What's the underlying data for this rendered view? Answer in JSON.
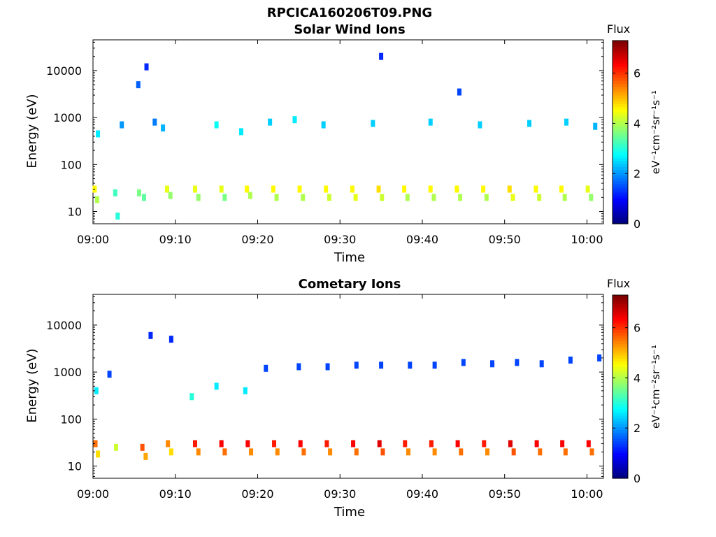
{
  "figure": {
    "title": "RPCICA160206T09.PNG"
  },
  "colorbar": {
    "title": "Flux",
    "unit_label": "eV⁻¹cm⁻²sr⁻¹s⁻¹",
    "ticks": [
      "0",
      "2",
      "4",
      "6"
    ],
    "colormap": "jet",
    "range": [
      0,
      7.3
    ]
  },
  "chart_data": [
    {
      "type": "heatmap",
      "title": "Solar Wind Ions",
      "xlabel": "Time",
      "ylabel": "Energy (eV)",
      "x_ticks": [
        "09:00",
        "09:10",
        "09:20",
        "09:30",
        "09:40",
        "09:50",
        "10:00"
      ],
      "y_ticks": [
        "10",
        "100",
        "1000",
        "10000"
      ],
      "y_scale": "log",
      "ylim": [
        5.5,
        45000
      ],
      "xlim_minutes": [
        0,
        62
      ],
      "cells": [
        {
          "t": 0.2,
          "e": 30,
          "f": 4.6
        },
        {
          "t": 0.5,
          "e": 18,
          "f": 4.0
        },
        {
          "t": 2.7,
          "e": 25,
          "f": 3.2
        },
        {
          "t": 3.0,
          "e": 8,
          "f": 3.0
        },
        {
          "t": 5.6,
          "e": 25,
          "f": 3.6
        },
        {
          "t": 6.2,
          "e": 20,
          "f": 3.4
        },
        {
          "t": 9.0,
          "e": 30,
          "f": 4.4
        },
        {
          "t": 9.4,
          "e": 22,
          "f": 3.8
        },
        {
          "t": 12.4,
          "e": 30,
          "f": 4.4
        },
        {
          "t": 12.8,
          "e": 20,
          "f": 3.8
        },
        {
          "t": 15.6,
          "e": 30,
          "f": 4.4
        },
        {
          "t": 16.0,
          "e": 20,
          "f": 3.6
        },
        {
          "t": 18.7,
          "e": 30,
          "f": 4.6
        },
        {
          "t": 19.1,
          "e": 22,
          "f": 4.0
        },
        {
          "t": 21.9,
          "e": 30,
          "f": 4.6
        },
        {
          "t": 22.3,
          "e": 20,
          "f": 4.0
        },
        {
          "t": 25.1,
          "e": 30,
          "f": 4.6
        },
        {
          "t": 25.5,
          "e": 20,
          "f": 4.0
        },
        {
          "t": 28.3,
          "e": 30,
          "f": 4.6
        },
        {
          "t": 28.7,
          "e": 20,
          "f": 4.2
        },
        {
          "t": 31.5,
          "e": 30,
          "f": 4.6
        },
        {
          "t": 31.9,
          "e": 20,
          "f": 4.4
        },
        {
          "t": 34.7,
          "e": 30,
          "f": 4.8
        },
        {
          "t": 35.1,
          "e": 20,
          "f": 4.2
        },
        {
          "t": 37.8,
          "e": 30,
          "f": 4.6
        },
        {
          "t": 38.2,
          "e": 20,
          "f": 4.0
        },
        {
          "t": 41.0,
          "e": 30,
          "f": 4.6
        },
        {
          "t": 41.4,
          "e": 20,
          "f": 4.0
        },
        {
          "t": 44.2,
          "e": 30,
          "f": 4.6
        },
        {
          "t": 44.6,
          "e": 20,
          "f": 4.0
        },
        {
          "t": 47.4,
          "e": 30,
          "f": 4.6
        },
        {
          "t": 47.8,
          "e": 20,
          "f": 4.0
        },
        {
          "t": 50.6,
          "e": 30,
          "f": 4.8
        },
        {
          "t": 51.0,
          "e": 20,
          "f": 4.4
        },
        {
          "t": 53.8,
          "e": 30,
          "f": 4.6
        },
        {
          "t": 54.2,
          "e": 20,
          "f": 4.2
        },
        {
          "t": 56.9,
          "e": 30,
          "f": 4.6
        },
        {
          "t": 57.3,
          "e": 20,
          "f": 4.0
        },
        {
          "t": 60.1,
          "e": 30,
          "f": 4.4
        },
        {
          "t": 60.5,
          "e": 20,
          "f": 3.8
        },
        {
          "t": 0.6,
          "e": 450,
          "f": 2.6
        },
        {
          "t": 3.5,
          "e": 700,
          "f": 2.0
        },
        {
          "t": 5.5,
          "e": 5000,
          "f": 1.6
        },
        {
          "t": 6.5,
          "e": 12000,
          "f": 1.2
        },
        {
          "t": 7.5,
          "e": 800,
          "f": 1.8
        },
        {
          "t": 8.5,
          "e": 600,
          "f": 2.2
        },
        {
          "t": 15.0,
          "e": 700,
          "f": 2.8
        },
        {
          "t": 18.0,
          "e": 500,
          "f": 2.6
        },
        {
          "t": 21.5,
          "e": 800,
          "f": 2.4
        },
        {
          "t": 24.5,
          "e": 900,
          "f": 2.6
        },
        {
          "t": 28.0,
          "e": 700,
          "f": 2.4
        },
        {
          "t": 34.0,
          "e": 750,
          "f": 2.4
        },
        {
          "t": 35.0,
          "e": 20000,
          "f": 1.2
        },
        {
          "t": 41.0,
          "e": 800,
          "f": 2.4
        },
        {
          "t": 44.5,
          "e": 3500,
          "f": 1.4
        },
        {
          "t": 47.0,
          "e": 700,
          "f": 2.4
        },
        {
          "t": 53.0,
          "e": 750,
          "f": 2.4
        },
        {
          "t": 57.5,
          "e": 800,
          "f": 2.4
        },
        {
          "t": 61.0,
          "e": 650,
          "f": 2.2
        }
      ]
    },
    {
      "type": "heatmap",
      "title": "Cometary Ions",
      "xlabel": "Time",
      "ylabel": "Energy (eV)",
      "x_ticks": [
        "09:00",
        "09:10",
        "09:20",
        "09:30",
        "09:40",
        "09:50",
        "10:00"
      ],
      "y_ticks": [
        "10",
        "100",
        "1000",
        "10000"
      ],
      "y_scale": "log",
      "ylim": [
        5.5,
        45000
      ],
      "xlim_minutes": [
        0,
        62
      ],
      "cells": [
        {
          "t": 0.3,
          "e": 30,
          "f": 5.6
        },
        {
          "t": 0.6,
          "e": 18,
          "f": 4.8
        },
        {
          "t": 2.8,
          "e": 25,
          "f": 4.2
        },
        {
          "t": 6.0,
          "e": 25,
          "f": 5.8
        },
        {
          "t": 6.4,
          "e": 16,
          "f": 5.2
        },
        {
          "t": 9.1,
          "e": 30,
          "f": 5.4
        },
        {
          "t": 9.5,
          "e": 20,
          "f": 4.8
        },
        {
          "t": 12.4,
          "e": 30,
          "f": 6.2
        },
        {
          "t": 12.8,
          "e": 20,
          "f": 5.4
        },
        {
          "t": 15.6,
          "e": 30,
          "f": 6.4
        },
        {
          "t": 16.0,
          "e": 20,
          "f": 5.6
        },
        {
          "t": 18.8,
          "e": 30,
          "f": 6.4
        },
        {
          "t": 19.2,
          "e": 20,
          "f": 5.4
        },
        {
          "t": 22.0,
          "e": 30,
          "f": 6.2
        },
        {
          "t": 22.4,
          "e": 20,
          "f": 5.4
        },
        {
          "t": 25.2,
          "e": 30,
          "f": 6.4
        },
        {
          "t": 25.6,
          "e": 20,
          "f": 5.6
        },
        {
          "t": 28.4,
          "e": 30,
          "f": 6.2
        },
        {
          "t": 28.8,
          "e": 20,
          "f": 5.4
        },
        {
          "t": 31.6,
          "e": 30,
          "f": 6.4
        },
        {
          "t": 32.0,
          "e": 20,
          "f": 5.6
        },
        {
          "t": 34.8,
          "e": 30,
          "f": 6.6
        },
        {
          "t": 35.2,
          "e": 20,
          "f": 5.8
        },
        {
          "t": 37.9,
          "e": 30,
          "f": 6.2
        },
        {
          "t": 38.3,
          "e": 20,
          "f": 5.4
        },
        {
          "t": 41.1,
          "e": 30,
          "f": 6.2
        },
        {
          "t": 41.5,
          "e": 20,
          "f": 5.4
        },
        {
          "t": 44.3,
          "e": 30,
          "f": 6.4
        },
        {
          "t": 44.7,
          "e": 20,
          "f": 5.6
        },
        {
          "t": 47.5,
          "e": 30,
          "f": 6.2
        },
        {
          "t": 47.9,
          "e": 20,
          "f": 5.4
        },
        {
          "t": 50.7,
          "e": 30,
          "f": 6.6
        },
        {
          "t": 51.1,
          "e": 20,
          "f": 5.8
        },
        {
          "t": 53.9,
          "e": 30,
          "f": 6.4
        },
        {
          "t": 54.3,
          "e": 20,
          "f": 5.6
        },
        {
          "t": 57.0,
          "e": 30,
          "f": 6.4
        },
        {
          "t": 57.4,
          "e": 20,
          "f": 5.6
        },
        {
          "t": 60.2,
          "e": 30,
          "f": 6.4
        },
        {
          "t": 60.6,
          "e": 20,
          "f": 5.6
        },
        {
          "t": 0.4,
          "e": 400,
          "f": 2.6
        },
        {
          "t": 2.0,
          "e": 900,
          "f": 1.4
        },
        {
          "t": 7.0,
          "e": 6000,
          "f": 1.2
        },
        {
          "t": 9.5,
          "e": 5000,
          "f": 1.2
        },
        {
          "t": 12.0,
          "e": 300,
          "f": 3.0
        },
        {
          "t": 15.0,
          "e": 500,
          "f": 2.6
        },
        {
          "t": 18.5,
          "e": 400,
          "f": 2.6
        },
        {
          "t": 21.0,
          "e": 1200,
          "f": 1.4
        },
        {
          "t": 25.0,
          "e": 1300,
          "f": 1.4
        },
        {
          "t": 28.5,
          "e": 1300,
          "f": 1.4
        },
        {
          "t": 32.0,
          "e": 1400,
          "f": 1.4
        },
        {
          "t": 35.0,
          "e": 1400,
          "f": 1.4
        },
        {
          "t": 38.5,
          "e": 1400,
          "f": 1.4
        },
        {
          "t": 41.5,
          "e": 1400,
          "f": 1.4
        },
        {
          "t": 45.0,
          "e": 1600,
          "f": 1.4
        },
        {
          "t": 48.5,
          "e": 1500,
          "f": 1.4
        },
        {
          "t": 51.5,
          "e": 1600,
          "f": 1.4
        },
        {
          "t": 54.5,
          "e": 1500,
          "f": 1.4
        },
        {
          "t": 58.0,
          "e": 1800,
          "f": 1.4
        },
        {
          "t": 61.5,
          "e": 2000,
          "f": 1.4
        }
      ]
    }
  ]
}
